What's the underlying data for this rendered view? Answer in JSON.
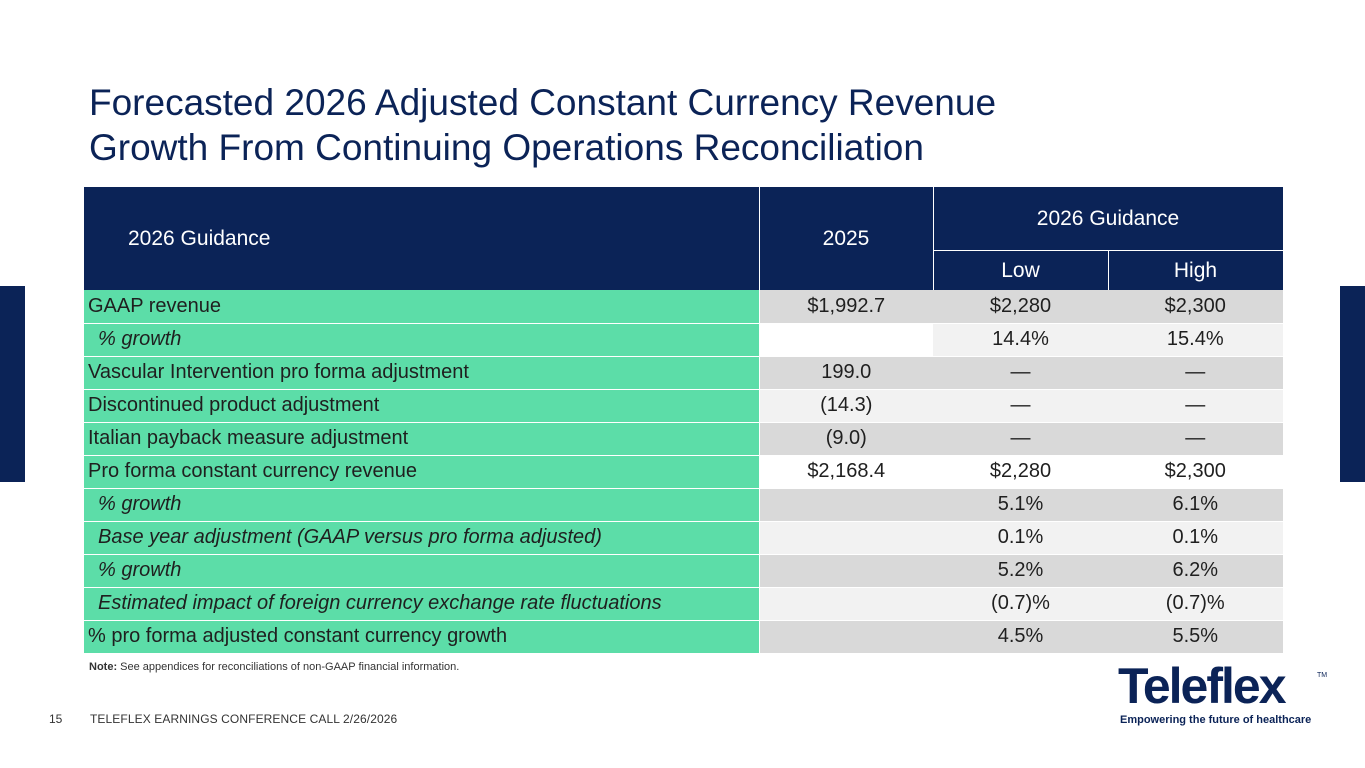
{
  "title": {
    "line1": "Forecasted 2026 Adjusted Constant Currency Revenue",
    "line2": "Growth From Continuing Operations Reconciliation"
  },
  "table": {
    "header": {
      "label": "2026 Guidance",
      "year": "2025",
      "guidance": "2026 Guidance",
      "low": "Low",
      "high": "High"
    },
    "rows": [
      {
        "label": "GAAP revenue",
        "y2025": "$1,992.7",
        "low": "$2,280",
        "high": "$2,300"
      },
      {
        "label": "% growth",
        "y2025": "",
        "low": "14.4%",
        "high": "15.4%"
      },
      {
        "label": "Vascular Intervention pro forma adjustment",
        "y2025": "199.0",
        "low": "—",
        "high": "—"
      },
      {
        "label": "Discontinued product adjustment",
        "y2025": "(14.3)",
        "low": "—",
        "high": "—"
      },
      {
        "label": "Italian payback measure adjustment",
        "y2025": "(9.0)",
        "low": "—",
        "high": "—"
      },
      {
        "label": "Pro forma constant currency revenue",
        "y2025": "$2,168.4",
        "low": "$2,280",
        "high": "$2,300"
      },
      {
        "label": "% growth",
        "y2025": "",
        "low": "5.1%",
        "high": "6.1%"
      },
      {
        "label": "Base year adjustment (GAAP versus pro forma adjusted)",
        "y2025": "",
        "low": "0.1%",
        "high": "0.1%"
      },
      {
        "label": "% growth",
        "y2025": "",
        "low": "5.2%",
        "high": "6.2%"
      },
      {
        "label": "Estimated impact of foreign currency exchange rate fluctuations",
        "y2025": "",
        "low": "(0.7)%",
        "high": "(0.7)%"
      },
      {
        "label": "% pro forma adjusted constant currency growth",
        "y2025": "",
        "low": "4.5%",
        "high": "5.5%"
      }
    ]
  },
  "note": {
    "prefix": "Note:",
    "text": " See appendices for reconciliations of non-GAAP financial information."
  },
  "footer": {
    "page_number": "15",
    "text": "TELEFLEX EARNINGS CONFERENCE CALL 2/26/2026"
  },
  "logo": {
    "name": "Teleflex",
    "tm": "TM",
    "tagline": "Empowering the future of healthcare"
  },
  "colors": {
    "navy": "#0b2357",
    "green": "#5cdda8",
    "grey_dark": "#d9d9d9",
    "grey_light": "#f2f2f2"
  }
}
